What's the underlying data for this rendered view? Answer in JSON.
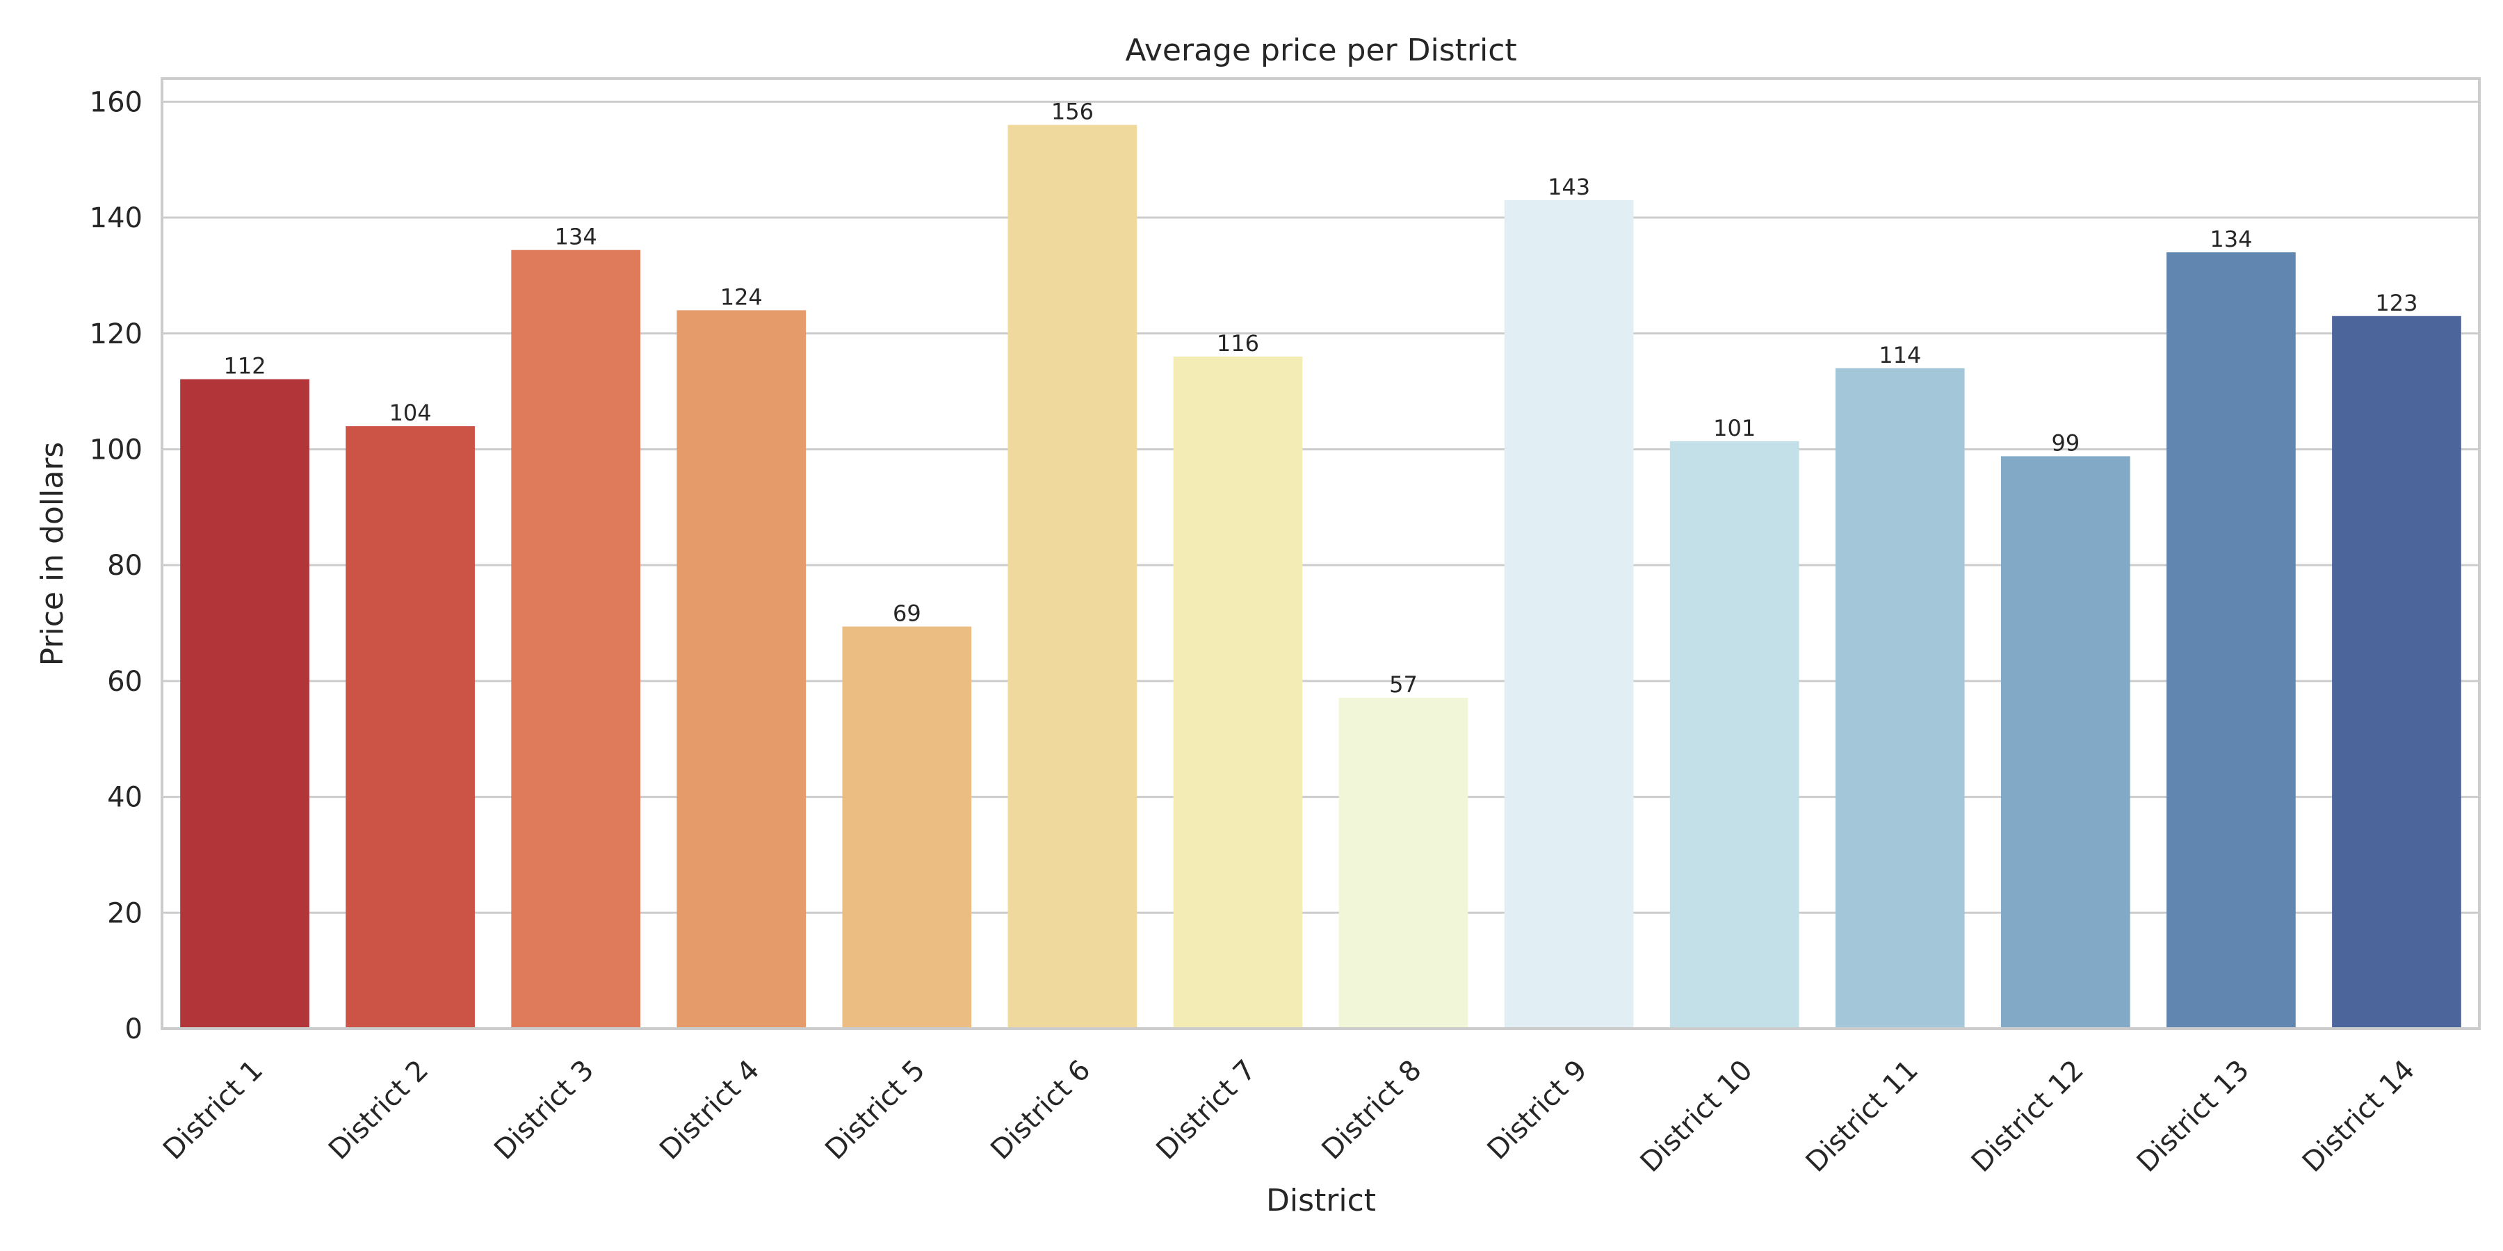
{
  "chart_data": {
    "type": "bar",
    "title": "Average price per District",
    "xlabel": "District",
    "ylabel": "Price in dollars",
    "ylim": [
      0,
      164
    ],
    "yticks": [
      0,
      20,
      40,
      60,
      80,
      100,
      120,
      140,
      160
    ],
    "grid": true,
    "categories": [
      "District 1",
      "District 2",
      "District 3",
      "District 4",
      "District 5",
      "District 6",
      "District 7",
      "District 8",
      "District 9",
      "District 10",
      "District 11",
      "District 12",
      "District 13",
      "District 14"
    ],
    "values": [
      112.1,
      104.0,
      134.4,
      124.0,
      69.4,
      156.0,
      116.0,
      57.1,
      143.0,
      101.4,
      114.0,
      98.8,
      134.0,
      123.0
    ],
    "data_labels": [
      "112",
      "104",
      "134",
      "124",
      "69",
      "156",
      "116",
      "57",
      "143",
      "101",
      "114",
      "99",
      "134",
      "123"
    ],
    "colors": [
      "#b2353a",
      "#cb5447",
      "#df7b5a",
      "#e69b6a",
      "#ebbd82",
      "#f0d99c",
      "#f4ecb5",
      "#f1f6d8",
      "#e1eff4",
      "#c3e0e8",
      "#a3c7d9",
      "#82a9c6",
      "#6187b0",
      "#4c659b"
    ]
  }
}
